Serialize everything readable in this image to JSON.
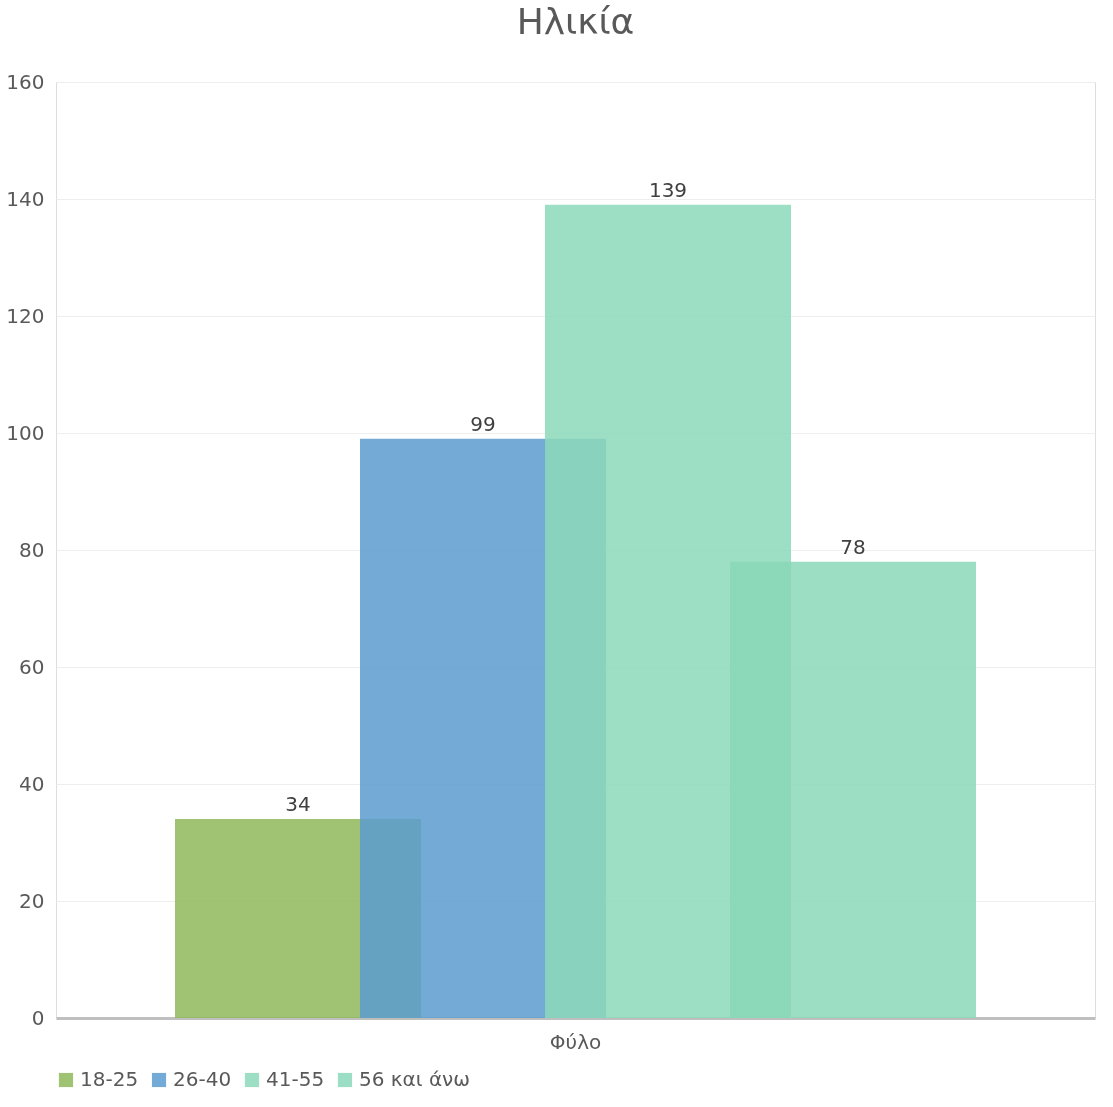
{
  "chart_data": {
    "type": "bar",
    "title": "Ηλικία",
    "categories": [
      "Φύλο"
    ],
    "series": [
      {
        "name": "18-25",
        "color": "#8fb85a",
        "values": [
          34
        ]
      },
      {
        "name": "26-40",
        "color": "#5b9bcf",
        "values": [
          99
        ]
      },
      {
        "name": "41-55",
        "color": "#8cd9ba",
        "values": [
          139
        ]
      },
      {
        "name": "56 και άνω",
        "color": "#8ad8b8",
        "values": [
          78
        ]
      }
    ],
    "ylim": [
      0,
      160
    ],
    "yticks": [
      0,
      20,
      40,
      60,
      80,
      100,
      120,
      140,
      160
    ],
    "grid": "y",
    "legend": "bottom",
    "data_labels": true
  }
}
